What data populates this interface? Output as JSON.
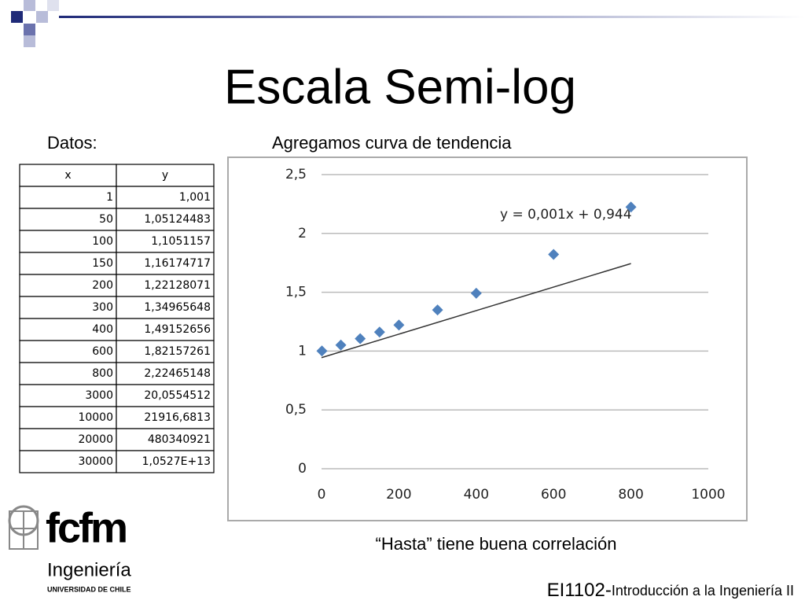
{
  "header": {
    "title": "Escala Semi-log"
  },
  "labels": {
    "left": "Datos:",
    "right": "Agregamos curva de tendencia"
  },
  "table": {
    "header": [
      "x",
      "y"
    ],
    "rows": [
      [
        "1",
        "1,001"
      ],
      [
        "50",
        "1,05124483"
      ],
      [
        "100",
        "1,1051157"
      ],
      [
        "150",
        "1,16174717"
      ],
      [
        "200",
        "1,22128071"
      ],
      [
        "300",
        "1,34965648"
      ],
      [
        "400",
        "1,49152656"
      ],
      [
        "600",
        "1,82157261"
      ],
      [
        "800",
        "2,22465148"
      ],
      [
        "3000",
        "20,0554512"
      ],
      [
        "10000",
        "21916,6813"
      ],
      [
        "20000",
        "480340921"
      ],
      [
        "30000",
        "1,0527E+13"
      ]
    ]
  },
  "chart_data": {
    "type": "scatter",
    "x": [
      1,
      50,
      100,
      150,
      200,
      300,
      400,
      600,
      800
    ],
    "values": [
      1.001,
      1.05124483,
      1.1051157,
      1.16174717,
      1.22128071,
      1.34965648,
      1.49152656,
      1.82157261,
      2.22465148
    ],
    "color": "#4f81bd",
    "xlim": [
      0,
      1000
    ],
    "xticks": [
      0,
      200,
      400,
      600,
      800,
      1000
    ],
    "ylim": [
      0,
      2.5
    ],
    "yticks": [
      0,
      {
        "value": 0.5,
        "label": "0,5"
      },
      1,
      {
        "value": 1.5,
        "label": "1,5"
      },
      2,
      {
        "value": 2.5,
        "label": "2,5"
      }
    ],
    "grid": true,
    "trendline": {
      "slope": 0.001,
      "intercept": 0.944,
      "label": "y = 0,001x + 0,944"
    }
  },
  "caption": "“Hasta” tiene buena correlación",
  "logo": {
    "brand": "fcfm",
    "faculty": "Ingeniería",
    "university": "UNIVERSIDAD DE CHILE"
  },
  "footer": {
    "code": "EI1102-",
    "course": "Introducción a la Ingeniería II"
  }
}
